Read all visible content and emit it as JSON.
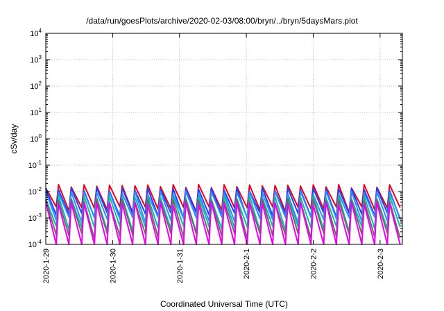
{
  "chart_data": {
    "type": "line",
    "title": "/data/run/goesPlots/archive/2020-02-03/08:00/bryn/../bryn/5daysMars.plot",
    "xlabel": "Coordinated Universal Time (UTC)",
    "ylabel": "cSv/day",
    "yscale": "log",
    "ylim": [
      0.0001,
      10000
    ],
    "yticks": [
      {
        "base": "10",
        "exp": "-4"
      },
      {
        "base": "10",
        "exp": "-3"
      },
      {
        "base": "10",
        "exp": "-2"
      },
      {
        "base": "10",
        "exp": "-1"
      },
      {
        "base": "10",
        "exp": "0"
      },
      {
        "base": "10",
        "exp": "1"
      },
      {
        "base": "10",
        "exp": "2"
      },
      {
        "base": "10",
        "exp": "3"
      },
      {
        "base": "10",
        "exp": "4"
      }
    ],
    "xlim": [
      "2020-01-29",
      "2020-02-03 08:00"
    ],
    "xticks": [
      "2020-1-29",
      "2020-1-30",
      "2020-1-31",
      "2020-2-1",
      "2020-2-2",
      "2020-2-3"
    ],
    "grid": true,
    "pattern": "sawtooth, roughly 5 cycles per day",
    "series": [
      {
        "color": "#e8001c",
        "peak": 0.016,
        "trough": 0.0022
      },
      {
        "color": "#1f3fff",
        "peak": 0.012,
        "trough": 0.0013
      },
      {
        "color": "#2b8cff",
        "peak": 0.009,
        "trough": 0.0009
      },
      {
        "color": "#12b8a8",
        "peak": 0.006,
        "trough": 0.0004
      },
      {
        "color": "#6b6b6b",
        "peak": 0.0045,
        "trough": 0.00022
      },
      {
        "color": "#ee00ee",
        "peak": 0.0035,
        "trough": 8e-05
      }
    ]
  }
}
